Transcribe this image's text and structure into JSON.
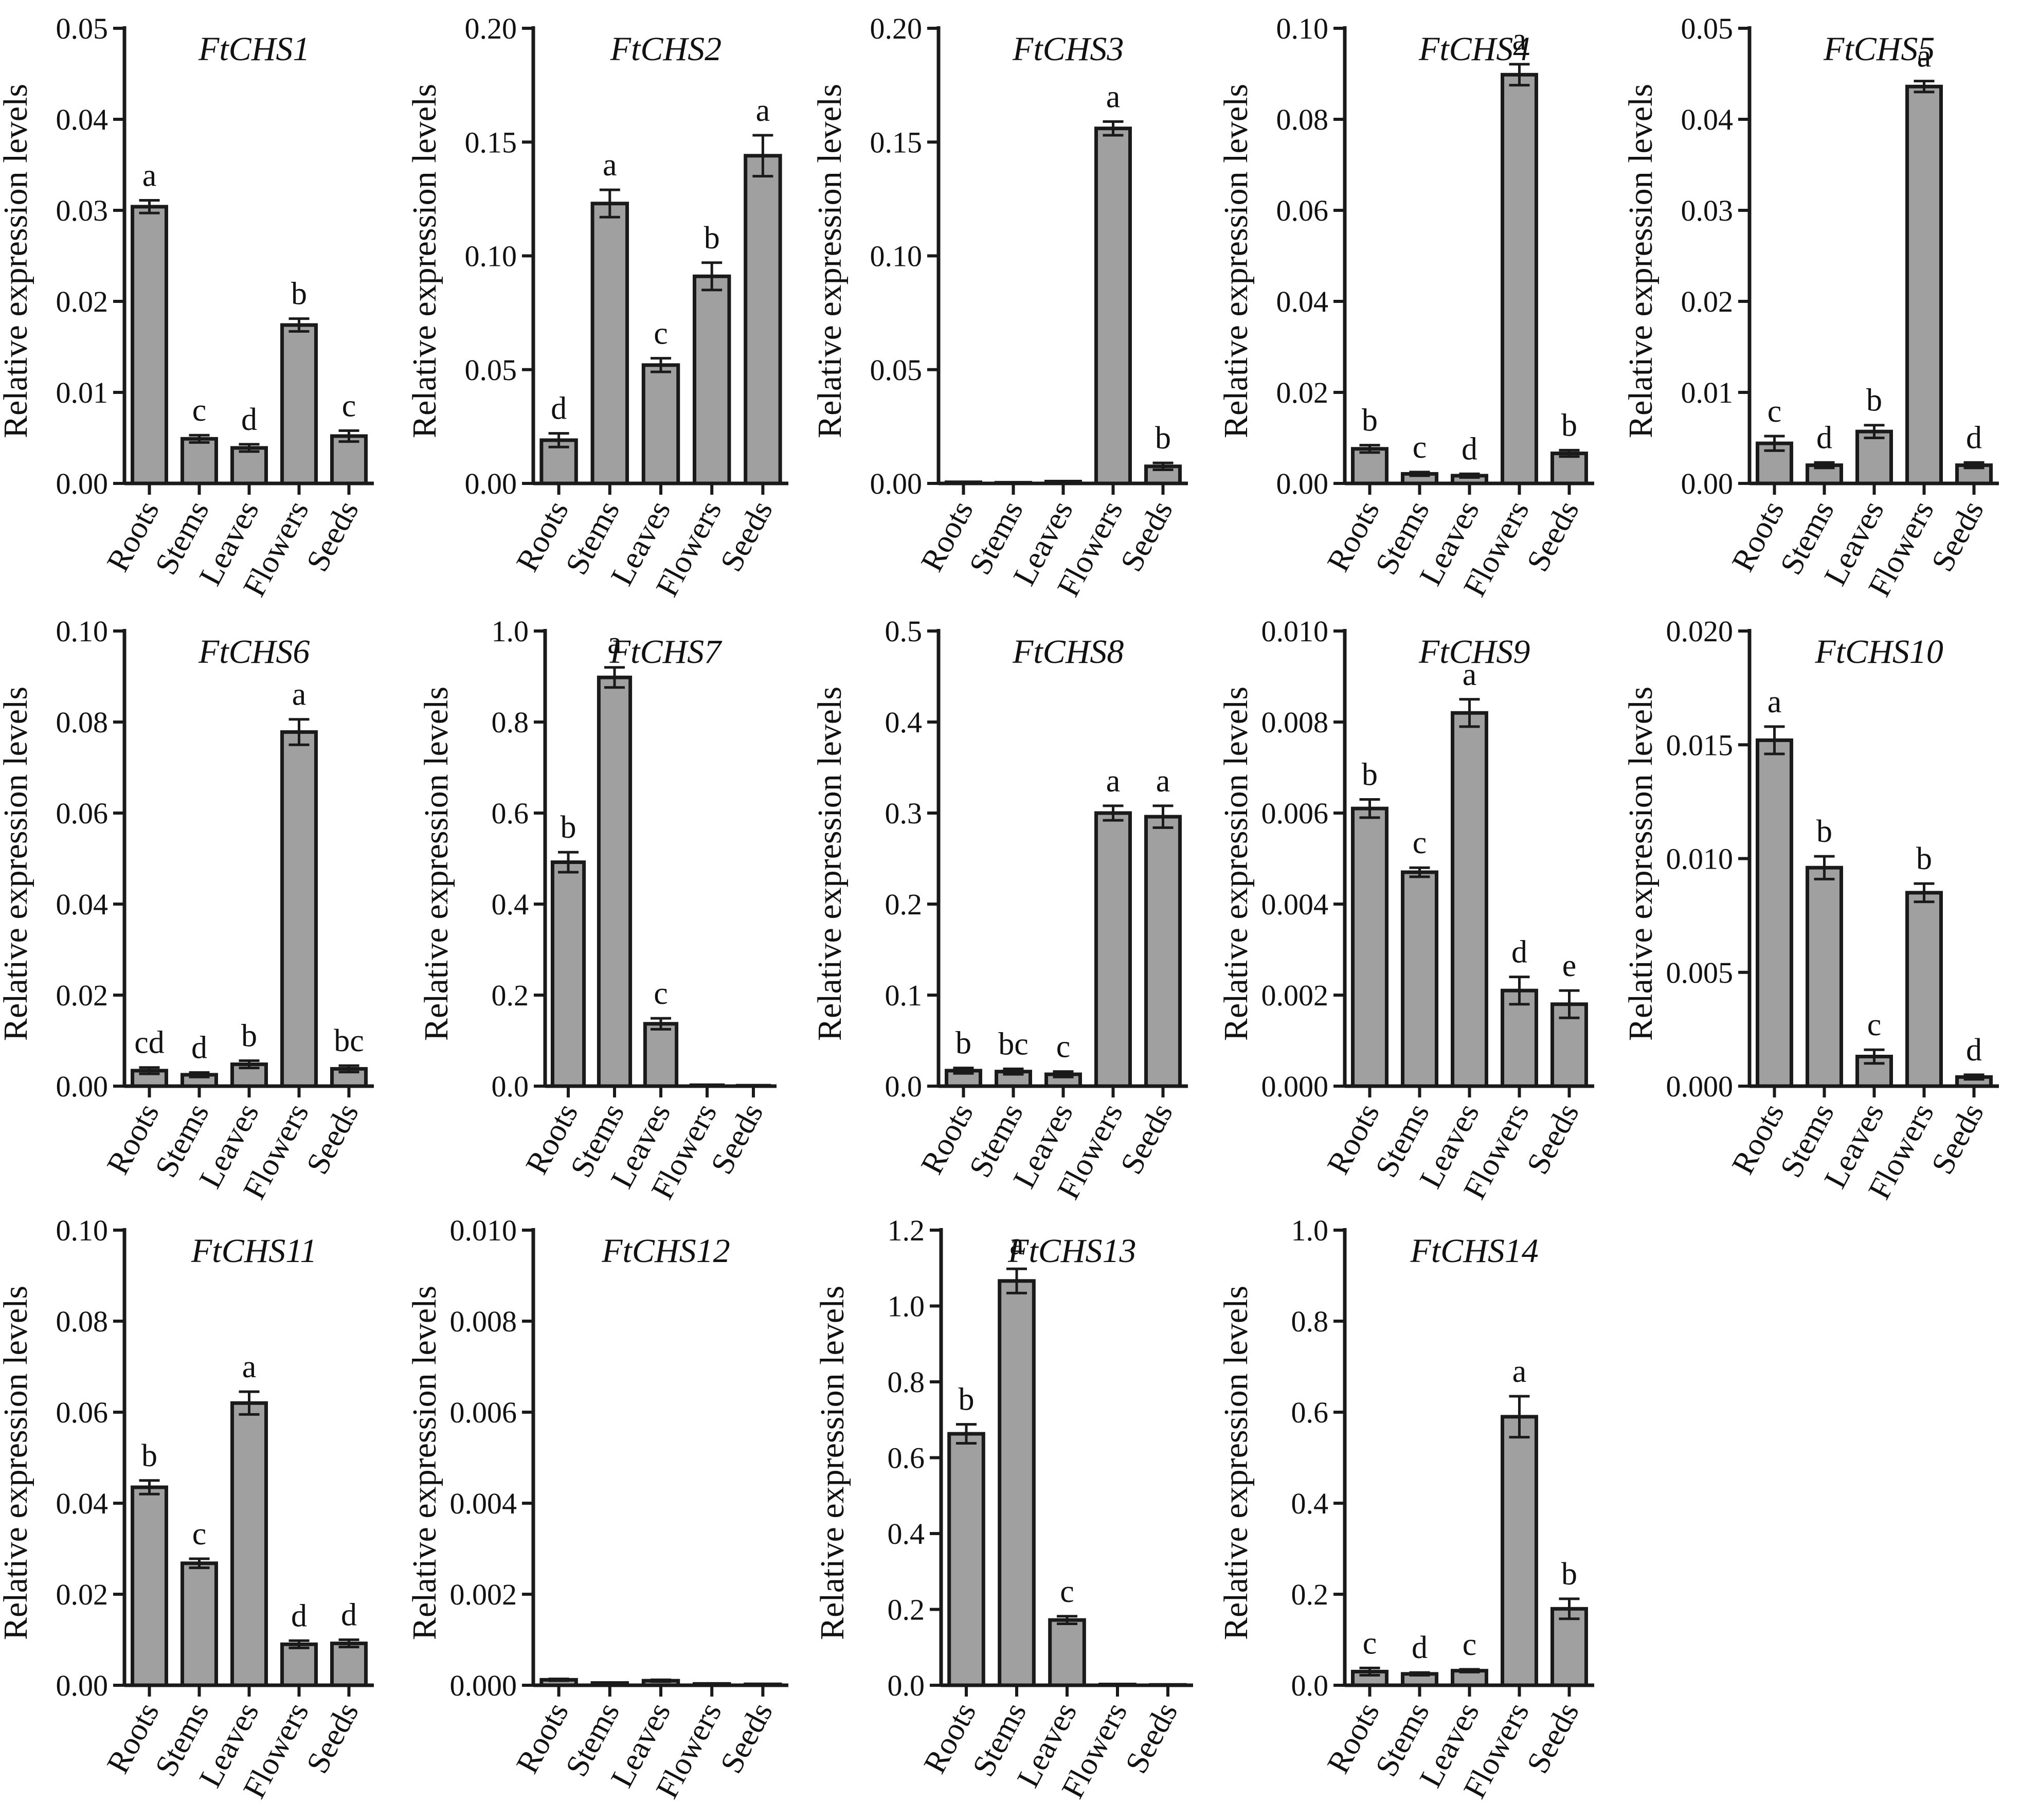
{
  "figure": {
    "ylabel": "Relative expression levels",
    "ylabel_alt": "Relative  expression levels",
    "categories": [
      "Roots",
      "Stems",
      "Leaves",
      "Flowers",
      "Seeds"
    ]
  },
  "chart_data": [
    {
      "type": "bar",
      "title": "FtCHS1",
      "ylabel": "Relative expression levels",
      "categories": [
        "Roots",
        "Stems",
        "Leaves",
        "Flowers",
        "Seeds"
      ],
      "values": [
        0.0304,
        0.0049,
        0.0039,
        0.0174,
        0.0052
      ],
      "errors": [
        0.0007,
        0.0004,
        0.0004,
        0.0007,
        0.0006
      ],
      "letters": [
        "a",
        "c",
        "d",
        "b",
        "c"
      ],
      "ylim": [
        0,
        0.05
      ],
      "yticks": [
        "0.00",
        "0.01",
        "0.02",
        "0.03",
        "0.04",
        "0.05"
      ]
    },
    {
      "type": "bar",
      "title": "FtCHS2",
      "ylabel": "Relative expression levels",
      "categories": [
        "Roots",
        "Stems",
        "Leaves",
        "Flowers",
        "Seeds"
      ],
      "values": [
        0.019,
        0.123,
        0.052,
        0.091,
        0.144
      ],
      "errors": [
        0.003,
        0.006,
        0.003,
        0.006,
        0.009
      ],
      "letters": [
        "d",
        "a",
        "c",
        "b",
        "a"
      ],
      "ylim": [
        0,
        0.2
      ],
      "yticks": [
        "0.00",
        "0.05",
        "0.10",
        "0.15",
        "0.20"
      ]
    },
    {
      "type": "bar",
      "title": "FtCHS3",
      "ylabel": "Relative expression levels",
      "categories": [
        "Roots",
        "Stems",
        "Leaves",
        "Flowers",
        "Seeds"
      ],
      "values": [
        0.0005,
        0.0003,
        0.0008,
        0.156,
        0.0075
      ],
      "errors": [
        0.0001,
        0.0001,
        0.0002,
        0.003,
        0.0015
      ],
      "letters": [
        "",
        "",
        "",
        "a",
        "b"
      ],
      "ylim": [
        0,
        0.2
      ],
      "yticks": [
        "0.00",
        "0.05",
        "0.10",
        "0.15",
        "0.20"
      ]
    },
    {
      "type": "bar",
      "title": "FtCHS4",
      "ylabel": "Relative expression levels",
      "categories": [
        "Roots",
        "Stems",
        "Leaves",
        "Flowers",
        "Seeds"
      ],
      "values": [
        0.0076,
        0.0021,
        0.0017,
        0.0898,
        0.0066
      ],
      "errors": [
        0.0008,
        0.0004,
        0.0004,
        0.0023,
        0.0007
      ],
      "letters": [
        "b",
        "c",
        "d",
        "a",
        "b"
      ],
      "ylim": [
        0,
        0.1
      ],
      "yticks": [
        "0.00",
        "0.02",
        "0.04",
        "0.06",
        "0.08",
        "0.10"
      ]
    },
    {
      "type": "bar",
      "title": "FtCHS5",
      "ylabel": "Relative  expression levels",
      "categories": [
        "Roots",
        "Stems",
        "Leaves",
        "Flowers",
        "Seeds"
      ],
      "values": [
        0.0044,
        0.002,
        0.0057,
        0.0436,
        0.002
      ],
      "errors": [
        0.0008,
        0.0003,
        0.0007,
        0.0006,
        0.0003
      ],
      "letters": [
        "c",
        "d",
        "b",
        "a",
        "d"
      ],
      "ylim": [
        0,
        0.05
      ],
      "yticks": [
        "0.00",
        "0.01",
        "0.02",
        "0.03",
        "0.04",
        "0.05"
      ]
    },
    {
      "type": "bar",
      "title": "FtCHS6",
      "ylabel": "Relative expression levels",
      "categories": [
        "Roots",
        "Stems",
        "Leaves",
        "Flowers",
        "Seeds"
      ],
      "values": [
        0.0034,
        0.0025,
        0.0048,
        0.0778,
        0.0038
      ],
      "errors": [
        0.0007,
        0.0005,
        0.0008,
        0.0028,
        0.0007
      ],
      "letters": [
        "cd",
        "d",
        "b",
        "a",
        "bc"
      ],
      "ylim": [
        0,
        0.1
      ],
      "yticks": [
        "0.00",
        "0.02",
        "0.04",
        "0.06",
        "0.08",
        "0.10"
      ]
    },
    {
      "type": "bar",
      "title": "FtCHS7",
      "ylabel": "Relative expression levels",
      "categories": [
        "Roots",
        "Stems",
        "Leaves",
        "Flowers",
        "Seeds"
      ],
      "values": [
        0.492,
        0.898,
        0.137,
        0.002,
        0.001
      ],
      "errors": [
        0.022,
        0.022,
        0.012,
        0.001,
        0.0005
      ],
      "letters": [
        "b",
        "a",
        "c",
        "",
        ""
      ],
      "ylim": [
        0,
        1.0
      ],
      "yticks": [
        "0.0",
        "0.2",
        "0.4",
        "0.6",
        "0.8",
        "1.0"
      ]
    },
    {
      "type": "bar",
      "title": "FtCHS8",
      "ylabel": "Relative expression levels",
      "categories": [
        "Roots",
        "Stems",
        "Leaves",
        "Flowers",
        "Seeds"
      ],
      "values": [
        0.017,
        0.016,
        0.013,
        0.3,
        0.296
      ],
      "errors": [
        0.003,
        0.003,
        0.003,
        0.008,
        0.012
      ],
      "letters": [
        "b",
        "bc",
        "c",
        "a",
        "a"
      ],
      "ylim": [
        0,
        0.5
      ],
      "yticks": [
        "0.0",
        "0.1",
        "0.2",
        "0.3",
        "0.4",
        "0.5"
      ]
    },
    {
      "type": "bar",
      "title": "FtCHS9",
      "ylabel": "Relative expression levels",
      "categories": [
        "Roots",
        "Stems",
        "Leaves",
        "Flowers",
        "Seeds"
      ],
      "values": [
        0.0061,
        0.0047,
        0.0082,
        0.0021,
        0.0018
      ],
      "errors": [
        0.0002,
        0.0001,
        0.0003,
        0.0003,
        0.0003
      ],
      "letters": [
        "b",
        "c",
        "a",
        "d",
        "e"
      ],
      "ylim": [
        0,
        0.01
      ],
      "yticks": [
        "0.000",
        "0.002",
        "0.004",
        "0.006",
        "0.008",
        "0.010"
      ]
    },
    {
      "type": "bar",
      "title": "FtCHS10",
      "ylabel": "Relative expression levels",
      "categories": [
        "Roots",
        "Stems",
        "Leaves",
        "Flowers",
        "Seeds"
      ],
      "values": [
        0.0152,
        0.0096,
        0.0013,
        0.0085,
        0.0004
      ],
      "errors": [
        0.0006,
        0.0005,
        0.0003,
        0.0004,
        0.0001
      ],
      "letters": [
        "a",
        "b",
        "c",
        "b",
        "d"
      ],
      "ylim": [
        0,
        0.02
      ],
      "yticks": [
        "0.000",
        "0.005",
        "0.010",
        "0.015",
        "0.020"
      ]
    },
    {
      "type": "bar",
      "title": "FtCHS11",
      "ylabel": "Relative expression levels",
      "categories": [
        "Roots",
        "Stems",
        "Leaves",
        "Flowers",
        "Seeds"
      ],
      "values": [
        0.0435,
        0.0268,
        0.062,
        0.009,
        0.0092
      ],
      "errors": [
        0.0015,
        0.001,
        0.0025,
        0.0008,
        0.0008
      ],
      "letters": [
        "b",
        "c",
        "a",
        "d",
        "d"
      ],
      "ylim": [
        0,
        0.1
      ],
      "yticks": [
        "0.00",
        "0.02",
        "0.04",
        "0.06",
        "0.08",
        "0.10"
      ]
    },
    {
      "type": "bar",
      "title": "FtCHS12",
      "ylabel": "Relative expression levels",
      "categories": [
        "Roots",
        "Stems",
        "Leaves",
        "Flowers",
        "Seeds"
      ],
      "values": [
        0.00012,
        5e-05,
        0.0001,
        3e-05,
        2e-05
      ],
      "errors": [
        2e-05,
        1e-05,
        2e-05,
        1e-05,
        1e-05
      ],
      "letters": [
        "",
        "",
        "",
        "",
        ""
      ],
      "ylim": [
        0,
        0.01
      ],
      "yticks": [
        "0.000",
        "0.002",
        "0.004",
        "0.006",
        "0.008",
        "0.010"
      ]
    },
    {
      "type": "bar",
      "title": "FtCHS13",
      "ylabel": "Relative expression levels",
      "categories": [
        "Roots",
        "Stems",
        "Leaves",
        "Flowers",
        "Seeds"
      ],
      "values": [
        0.663,
        1.066,
        0.172,
        0.002,
        0.001
      ],
      "errors": [
        0.025,
        0.032,
        0.01,
        0.001,
        0.0005
      ],
      "letters": [
        "b",
        "a",
        "c",
        "",
        ""
      ],
      "ylim": [
        0,
        1.2
      ],
      "yticks": [
        "0.0",
        "0.2",
        "0.4",
        "0.6",
        "0.8",
        "1.0",
        "1.2"
      ]
    },
    {
      "type": "bar",
      "title": "FtCHS14",
      "ylabel": "Relative  expression levels",
      "categories": [
        "Roots",
        "Stems",
        "Leaves",
        "Flowers",
        "Seeds"
      ],
      "values": [
        0.03,
        0.025,
        0.032,
        0.59,
        0.168
      ],
      "errors": [
        0.008,
        0.003,
        0.003,
        0.045,
        0.022
      ],
      "letters": [
        "c",
        "d",
        "c",
        "a",
        "b"
      ],
      "ylim": [
        0,
        1.0
      ],
      "yticks": [
        "0.0",
        "0.2",
        "0.4",
        "0.6",
        "0.8",
        "1.0"
      ]
    }
  ]
}
